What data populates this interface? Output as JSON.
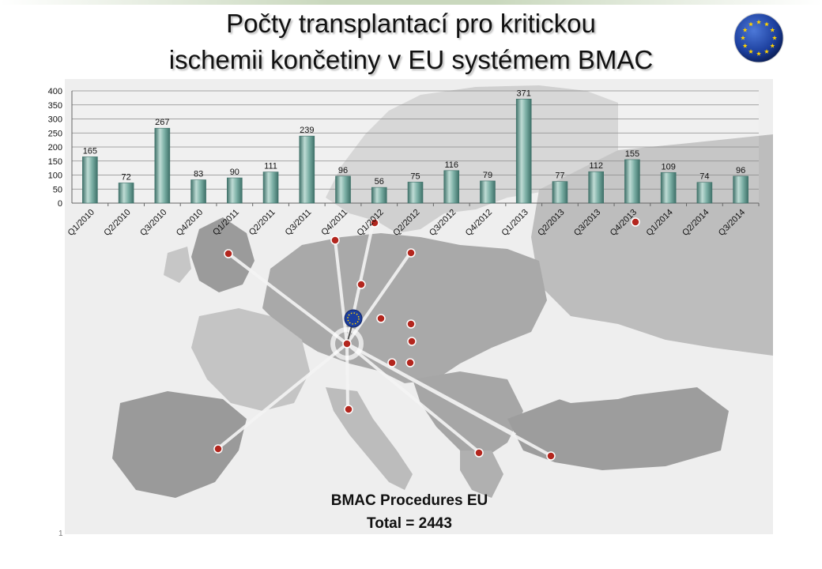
{
  "slide": {
    "title_line1": "Počty transplantací pro kritickou",
    "title_line2": "ischemii končetiny v EU systémem BMAC",
    "caption_line1": "BMAC Procedures EU",
    "caption_line2": "Total = 2443",
    "slide_number": "1"
  },
  "colors": {
    "bar": "#7aaea4",
    "bar_light": "#bfdcd5",
    "bar_dark": "#3f7169",
    "marker": "#b3261e",
    "map_bg": "#eeeeee",
    "land": "#c8c8c8",
    "land_dark": "#9e9e9e",
    "eu_blue": "#1c3f9e",
    "eu_star": "#ffd200"
  },
  "icons": {
    "flag": "eu-flag-icon",
    "hub": "eu-hub-icon",
    "marker": "map-pin-icon"
  },
  "chart_data": {
    "type": "bar",
    "categories": [
      "Q1/2010",
      "Q2/2010",
      "Q3/2010",
      "Q4/2010",
      "Q1/2011",
      "Q2/2011",
      "Q3/2011",
      "Q4/2011",
      "Q1/2012",
      "Q2/2012",
      "Q3/2012",
      "Q4/2012",
      "Q1/2013",
      "Q2/2013",
      "Q3/2013",
      "Q4/2013",
      "Q1/2014",
      "Q2/2014",
      "Q3/2014"
    ],
    "values": [
      165,
      72,
      267,
      83,
      90,
      111,
      239,
      96,
      56,
      75,
      116,
      79,
      371,
      77,
      112,
      155,
      109,
      74,
      96
    ],
    "yticks": [
      0,
      50,
      100,
      150,
      200,
      250,
      300,
      350,
      400
    ],
    "ylim": [
      0,
      400
    ],
    "grid": true,
    "data_labels": true,
    "xlabel": "",
    "ylabel": ""
  }
}
